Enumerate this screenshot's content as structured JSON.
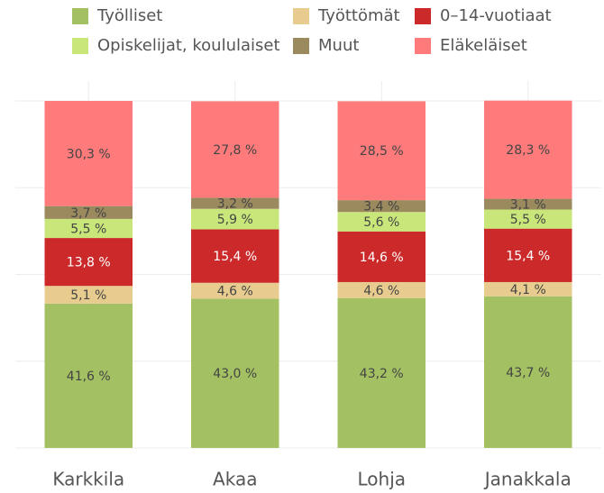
{
  "chart_data": {
    "type": "stacked_bar",
    "categories": [
      "Karkkila",
      "Akaa",
      "Lohja",
      "Janakkala"
    ],
    "series": [
      {
        "name": "Työlliset",
        "color": "#a3c162",
        "values": [
          41.6,
          43.0,
          43.2,
          43.7
        ],
        "value_labels": [
          "41,6 %",
          "43,0 %",
          "43,2 %",
          "43,7 %"
        ]
      },
      {
        "name": "Työttömät",
        "color": "#e8cc8f",
        "values": [
          5.1,
          4.6,
          4.6,
          4.1
        ],
        "value_labels": [
          "5,1 %",
          "4,6 %",
          "4,6 %",
          "4,1 %"
        ]
      },
      {
        "name": "0–14-vuotiaat",
        "color": "#cc2a2a",
        "values": [
          13.8,
          15.4,
          14.6,
          15.4
        ],
        "value_labels": [
          "13,8 %",
          "15,4 %",
          "14,6 %",
          "15,4 %"
        ]
      },
      {
        "name": "Opiskelijat, koululaiset",
        "color": "#c8e67a",
        "values": [
          5.5,
          5.9,
          5.6,
          5.5
        ],
        "value_labels": [
          "5,5 %",
          "5,9 %",
          "5,6 %",
          "5,5 %"
        ]
      },
      {
        "name": "Muut",
        "color": "#9b8a5e",
        "values": [
          3.7,
          3.2,
          3.4,
          3.1
        ],
        "value_labels": [
          "3,7 %",
          "3,2 %",
          "3,4 %",
          "3,1 %"
        ]
      },
      {
        "name": "Eläkeläiset",
        "color": "#ff7b7b",
        "values": [
          30.3,
          27.8,
          28.5,
          28.3
        ],
        "value_labels": [
          "30,3 %",
          "27,8 %",
          "28,5 %",
          "28,3 %"
        ]
      }
    ],
    "ylim": [
      0,
      100
    ],
    "yticks": [
      0,
      25,
      50,
      75,
      100
    ],
    "grid": true
  }
}
